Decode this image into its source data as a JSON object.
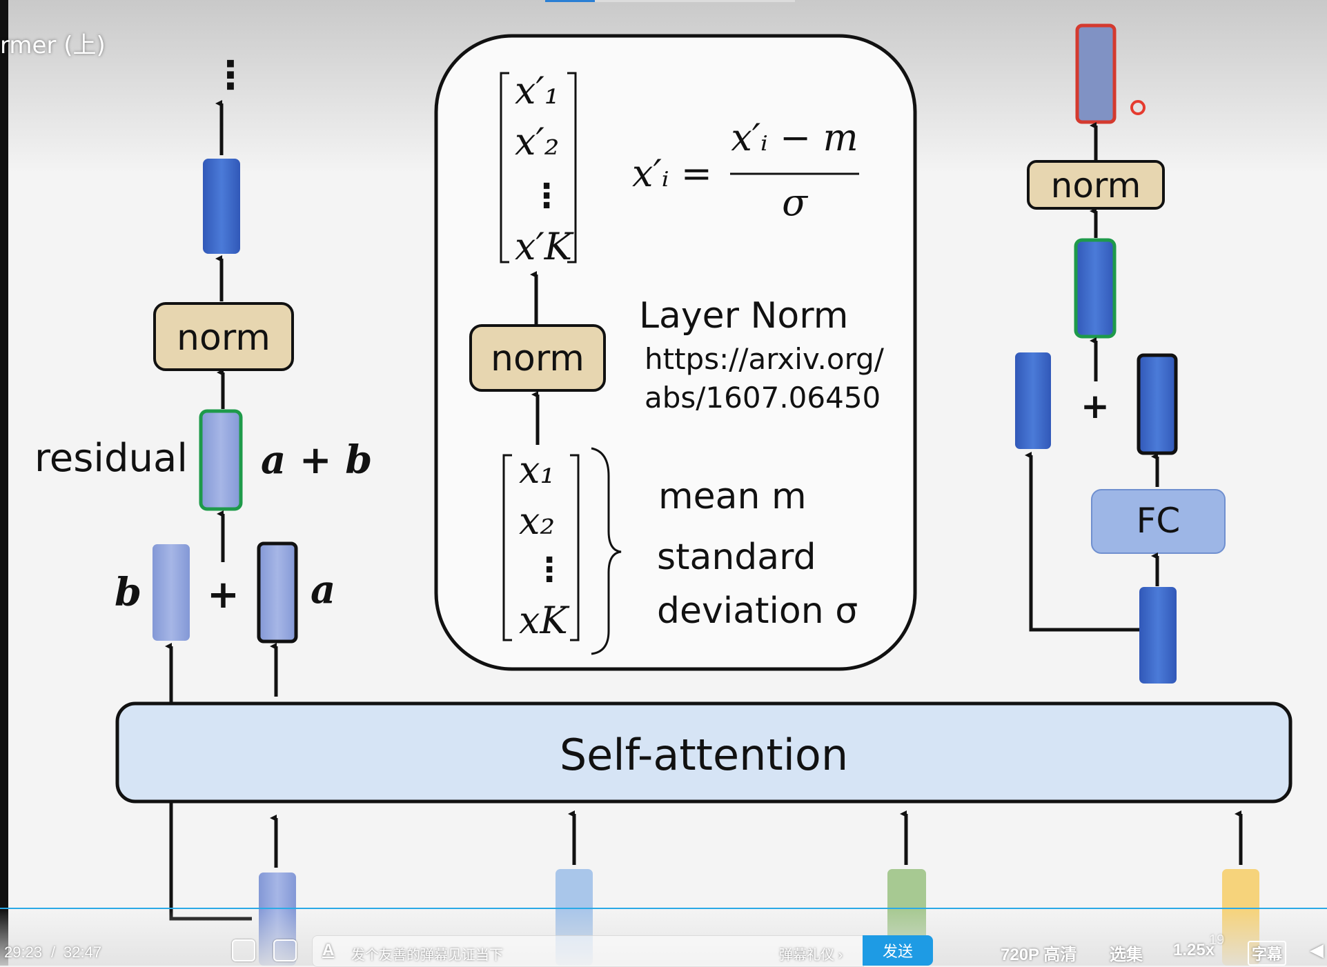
{
  "video": {
    "title_fragment": "rmer (上)",
    "time_current": "29:23",
    "time_separator": "/",
    "time_total": "32:47",
    "danmaku_placeholder": "发个友善的弹幕见证当下",
    "danmaku_etiquette": "弹幕礼仪 ›",
    "send_label": "发送",
    "quality_label": "720P 高清",
    "episodes_label": "选集",
    "speed_label": "1.25x",
    "subtitle_label": "字幕",
    "page_number_hint": "19"
  },
  "slide": {
    "left_diagram": {
      "ellipsis": "⋮",
      "norm_label": "norm",
      "residual_label": "residual",
      "sum_label": "a + b",
      "b_label": "b",
      "a_label": "a",
      "plus": "+"
    },
    "center_box": {
      "norm_label": "norm",
      "layer_norm_title": "Layer Norm",
      "url_line1": "https://arxiv.org/",
      "url_line2": "abs/1607.06450",
      "output_vector": [
        "x′₁",
        "x′₂",
        "⋮",
        "x′K"
      ],
      "input_vector": [
        "x₁",
        "x₂",
        "⋮",
        "xK"
      ],
      "formula_lhs": "x′ᵢ =",
      "formula_numerator": "x′ᵢ − m",
      "formula_denominator": "σ",
      "mean_label": "mean m",
      "std_label_line1": "standard",
      "std_label_line2": "deviation σ"
    },
    "right_diagram": {
      "norm_label": "norm",
      "fc_label": "FC",
      "plus": "+"
    },
    "self_attention_label": "Self-attention"
  },
  "colors": {
    "blue_vector": "#3f6fd0",
    "light_blue_vector": "#8fa6dc",
    "norm_fill": "#e7d6b0",
    "fc_fill": "#9db6e6",
    "green_border": "#1e9a4a",
    "red_border": "#d43a2f",
    "send_button": "#1e9be4"
  }
}
